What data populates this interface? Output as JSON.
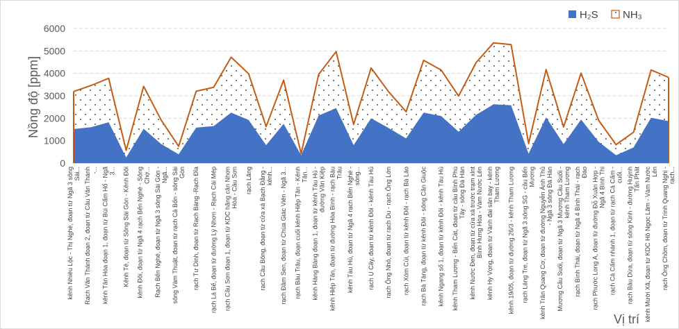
{
  "chart_data": {
    "type": "area",
    "xlabel": "Vị trí",
    "ylabel": "Nồng độ [ppm]",
    "ylim": [
      0,
      6000
    ],
    "yticks": [
      0,
      1000,
      2000,
      3000,
      4000,
      5000,
      6000
    ],
    "grid": true,
    "legend_position": "top-right",
    "categories": [
      "kênh Nhiêu Lộc - Thị Nghè, đoạn từ Ngã 3 sông Sài...",
      "Rạch Văn Thánh đoạn 2, đoạn từ Cầu Văn Thánh -...",
      "kênh Tân Hóa đoạn 1, đoạn từ Bùi Cẩm Hổ - Ngã 3...",
      "Kênh Tẻ, đoạn từ Sông Sài Gòn - Kênh Đôi",
      "kênh Đôi, đoạn từ Ngã 4 rạch Bến Nghé - Sông Chợ...",
      "Rạch Bến Nghé, đoạn từ Ngã 3 sông Sài Gòn - Ngã...",
      "sông Vàm Thuật, đoạn từ rạch Cả Bốn - sông Sài Gòn",
      "rạch Tư Dinh, đoạn từ Rạch Bàng -Rạch Đỉa",
      "rạch Lá Bế, đoạn từ đường Lý Nhơn - Rạch Cái Mép",
      "rạch Cầu Sơn đoạn 1, đoạn từ KDC hãng cân Nhơn Hòa - Cầu Sơn",
      "rạch Lăng",
      "rạch Cầu Bông, đoạn từ cửa xả Bạch Đằng - kênh...",
      "rạch Đầm Sen, đoạn từ Chùa Giác Viên - Ngã 3...",
      "rạch Bàu Trâu, đoạn cuối kênh Hiệp Tân - Kênh Tân...",
      "kênh Hàng Bàng đoạn 1, đoạn từ kênh Tàu Hủ - đường Văn Kiệp",
      "kênh Hiệp Tân, đoạn từ đường Hòa Bình - rạch Bàu Trâu",
      "kênh Tàu Hủ, đoạn từ Ngã 4 rạch Bến Nghé - sông...",
      "rạch Ụ Cây, đoạn từ kênh Đôi - kênh Tàu Hủ",
      "rạch Ông Nhỏ, đoạn từ rạch Du - rạch Ông Lớn",
      "rạch Xóm Củi, đoạn từ kênh Đôi - rạch Bà Lào",
      "rạch Bà Tàng, đoạn từ kênh Đôi - sông Cần Giuộc",
      "kênh Ngang số 1, đoạn từ kênh Đôi - kênh Tàu Hủ",
      "kênh Tham Lương - Bến Cát, đoạn từ cầu Bình Phú Tây - sông Đá Hàn",
      "kênh Nước Đen, đoạn từ cửa xả trước trạm xlnt Bình Hưng Hòa - Vàm Nước Lên",
      "kênh Hy Vọng, đoạn từ Vành đai sân bay - kênh Tham Lương",
      "kênh 19/05, đoạn từ đường 26/3 - kênh Tham Lương",
      "rạch Láng Tre, đoạn từ Ngã 3 sông SG - cầu Bến Mương",
      "kênh Trần Quang Cơ, đoạn từ đường Nguyễn Ánh Thủ - Ngã 3 sông Đá Hàn",
      "Mương Cầu Suối, đoạn từ Ngã 3 Mương Cầu Suối - kênh Tham Lương",
      "rạch Bình Thái, đoạn từ Ngã 4 Bình Thái - rạch Đào",
      "rạch Phước Long A, đoạn từ đường Đỗ Xuân Hợp - Ngã 4 Bình Thi",
      "rạch Cá Cấm nhánh 1, đoạn từ rạch Cá Cấm - cuối...",
      "rạch Bàu Dừa, đoạn từ sông Kinh - đường Huỳnh Tấn Phát",
      "kênh Mười Xã, đoạn từ KDC Hồ Ngọc Lãm - Vàm Nước Lên",
      "rạch Ông Chồm, đoạn từ Trinh Quang Nghị - rạch..."
    ],
    "series": [
      {
        "name": "H₂S",
        "color": "#4472c4",
        "values": [
          1520,
          1600,
          1820,
          250,
          1530,
          850,
          390,
          1580,
          1650,
          2250,
          1920,
          800,
          1750,
          350,
          2120,
          2450,
          800,
          2000,
          1560,
          1100,
          2250,
          2100,
          1400,
          2150,
          2620,
          2580,
          420,
          2040,
          850,
          1940,
          950,
          350,
          700,
          2020,
          1870
        ]
      },
      {
        "name": "NH₃",
        "color": "#c55a11",
        "values": [
          3190,
          3460,
          3780,
          570,
          3420,
          1920,
          750,
          3200,
          3380,
          4720,
          3980,
          1630,
          3700,
          420,
          3950,
          4970,
          1720,
          4240,
          3180,
          2290,
          4580,
          4150,
          2990,
          4480,
          5360,
          5280,
          870,
          4170,
          1610,
          4010,
          1910,
          820,
          1380,
          4150,
          3820
        ]
      }
    ]
  }
}
